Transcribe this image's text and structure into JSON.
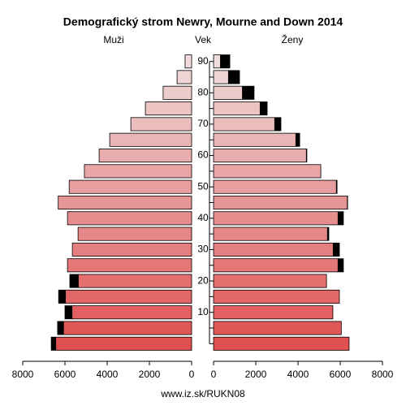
{
  "chart_data": {
    "type": "pyramid",
    "title": "Demografický strom Newry, Mourne and Down 2014",
    "y_label": "Vek",
    "source": "www.iz.sk/RUKN08",
    "categories": [
      null,
      null,
      "10",
      null,
      "20",
      null,
      "30",
      null,
      "40",
      null,
      "50",
      null,
      "60",
      null,
      "70",
      null,
      "80",
      null,
      "90"
    ],
    "series": [
      {
        "name": "Muži",
        "values": [
          6650,
          6350,
          6000,
          6300,
          5770,
          5880,
          5650,
          5380,
          5880,
          6320,
          5800,
          5080,
          4380,
          3880,
          2880,
          2190,
          1350,
          690,
          310
        ]
      },
      {
        "name": "Ženy",
        "values": [
          6420,
          6050,
          5650,
          5960,
          5350,
          6150,
          5960,
          5460,
          6150,
          6350,
          5850,
          5080,
          4420,
          4080,
          3190,
          2540,
          1920,
          1230,
          770
        ]
      }
    ],
    "colors": [
      "#e05050",
      "#e15858",
      "#e26060",
      "#e26767",
      "#e36f6f",
      "#e47777",
      "#e57f7f",
      "#e68686",
      "#e68e8e",
      "#e79696",
      "#e89e9e",
      "#e9a5a5",
      "#eaadad",
      "#eab5b5",
      "#ebbdbd",
      "#ecc4c4",
      "#edcccc",
      "#eed4d4",
      "#f0dcdc"
    ],
    "excess_color": "#000000",
    "xlim": [
      0,
      8000
    ],
    "xticks": [
      0,
      2000,
      4000,
      6000,
      8000
    ]
  }
}
